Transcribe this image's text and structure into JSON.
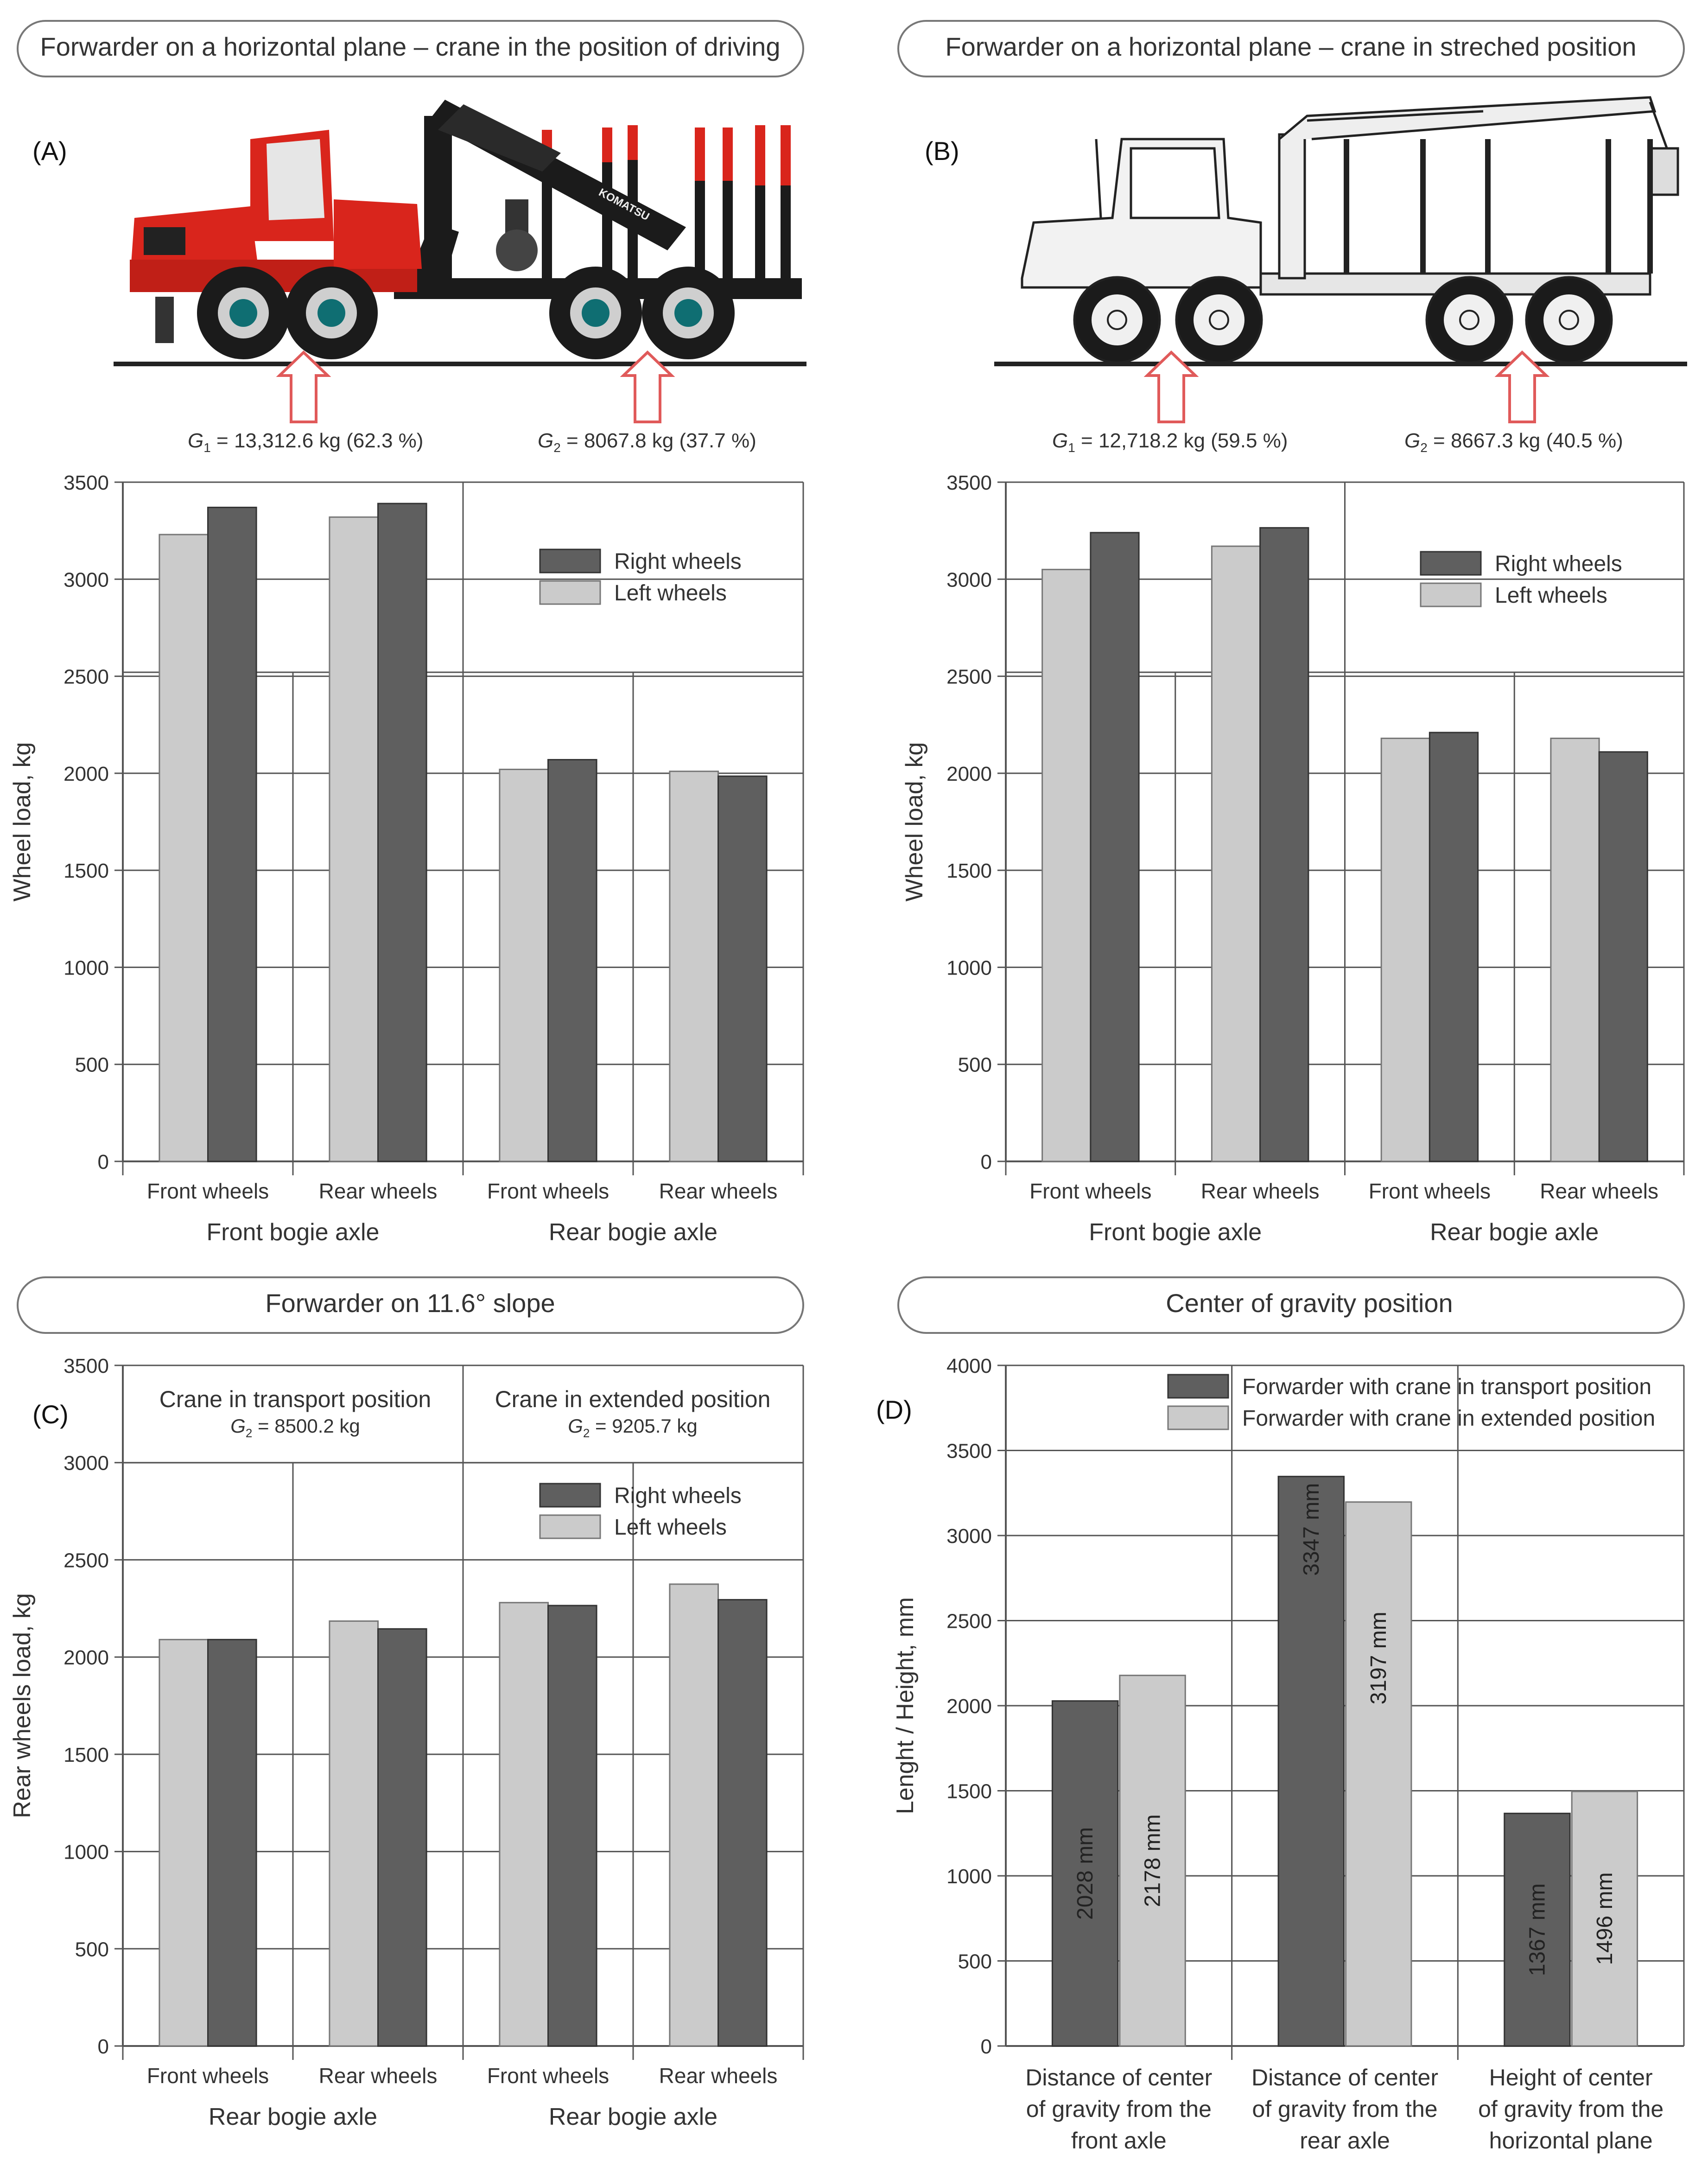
{
  "colors": {
    "right": "#5f5f5f",
    "left": "#cbcbcb",
    "grid": "#555555",
    "text": "#333333",
    "arrow": "#e05a5a",
    "body_red": "#d9251c",
    "body_black": "#1b1b1b",
    "body_grey": "#e8e8e8"
  },
  "panels": {
    "A": {
      "letter": "(A)",
      "header": "Forwarder on a horizontal plane – crane in the position of driving",
      "g1": {
        "sym": "G",
        "sub": "1",
        "text": " = 13,312.6 kg (62.3 %)"
      },
      "g2": {
        "sym": "G",
        "sub": "2",
        "text": " = 8067.8 kg (37.7 %)"
      }
    },
    "B": {
      "letter": "(B)",
      "header": "Forwarder on a horizontal plane – crane in streched position",
      "g1": {
        "sym": "G",
        "sub": "1",
        "text": " = 12,718.2 kg (59.5 %)"
      },
      "g2": {
        "sym": "G",
        "sub": "2",
        "text": " = 8667.3 kg (40.5 %)"
      }
    },
    "C": {
      "letter": "(C)",
      "header": "Forwarder on 11.6° slope",
      "group_titles": [
        {
          "title": "Crane in transport position",
          "sym": "G",
          "sub": "2",
          "text": " = 8500.2 kg"
        },
        {
          "title": "Crane in extended position",
          "sym": "G",
          "sub": "2",
          "text": " = 9205.7 kg"
        }
      ]
    },
    "D": {
      "letter": "(D)",
      "header": "Center of gravity position"
    }
  },
  "chart_data": [
    {
      "id": "A",
      "type": "bar",
      "title": "Forwarder on a horizontal plane – crane in the position of driving",
      "ylabel": "Wheel load, kg",
      "ylim": [
        0,
        3500
      ],
      "yticks": [
        0,
        500,
        1000,
        1500,
        2000,
        2500,
        3000,
        3500
      ],
      "categories": [
        "Front wheels",
        "Rear wheels",
        "Front wheels",
        "Rear wheels"
      ],
      "groups": [
        "Front bogie axle",
        "Rear bogie axle"
      ],
      "legend": [
        "Right wheels",
        "Left wheels"
      ],
      "series": [
        {
          "name": "Left wheels",
          "values": [
            3230,
            3320,
            2020,
            2010
          ]
        },
        {
          "name": "Right wheels",
          "values": [
            3370,
            3390,
            2070,
            1985
          ]
        }
      ]
    },
    {
      "id": "B",
      "type": "bar",
      "title": "Forwarder on a horizontal plane – crane in streched position",
      "ylabel": "Wheel load, kg",
      "ylim": [
        0,
        3500
      ],
      "yticks": [
        0,
        500,
        1000,
        1500,
        2000,
        2500,
        3000,
        3500
      ],
      "categories": [
        "Front wheels",
        "Rear wheels",
        "Front wheels",
        "Rear wheels"
      ],
      "groups": [
        "Front bogie axle",
        "Rear bogie axle"
      ],
      "legend": [
        "Right wheels",
        "Left wheels"
      ],
      "series": [
        {
          "name": "Left wheels",
          "values": [
            3050,
            3170,
            2180,
            2180
          ]
        },
        {
          "name": "Right wheels",
          "values": [
            3240,
            3265,
            2210,
            2110
          ]
        }
      ]
    },
    {
      "id": "C",
      "type": "bar",
      "title": "Forwarder on 11.6° slope",
      "ylabel": "Rear wheels load, kg",
      "ylim": [
        0,
        3500
      ],
      "yticks": [
        0,
        500,
        1000,
        1500,
        2000,
        2500,
        3000,
        3500
      ],
      "categories": [
        "Front wheels",
        "Rear wheels",
        "Front wheels",
        "Rear wheels"
      ],
      "groups": [
        "Rear bogie axle",
        "Rear bogie axle"
      ],
      "legend": [
        "Right wheels",
        "Left wheels"
      ],
      "series": [
        {
          "name": "Left wheels",
          "values": [
            2090,
            2185,
            2280,
            2375
          ]
        },
        {
          "name": "Right wheels",
          "values": [
            2090,
            2145,
            2265,
            2295
          ]
        }
      ]
    },
    {
      "id": "D",
      "type": "bar",
      "title": "Center of gravity position",
      "ylabel": "Lenght / Height, mm",
      "ylim": [
        0,
        4000
      ],
      "yticks": [
        0,
        500,
        1000,
        1500,
        2000,
        2500,
        3000,
        3500,
        4000
      ],
      "categories": [
        [
          "Distance of center",
          "of gravity from the",
          "front axle"
        ],
        [
          "Distance of center",
          "of gravity from the",
          "rear axle"
        ],
        [
          "Height of center",
          "of gravity from the",
          "horizontal plane"
        ]
      ],
      "legend": [
        "Forwarder with crane in transport position",
        "Forwarder with crane in extended position"
      ],
      "series": [
        {
          "name": "Forwarder with crane in transport position",
          "values": [
            2028,
            3347,
            1367
          ],
          "labels": [
            "2028 mm",
            "3347 mm",
            "1367 mm"
          ]
        },
        {
          "name": "Forwarder with crane in extended position",
          "values": [
            2178,
            3197,
            1496
          ],
          "labels": [
            "2178 mm",
            "3197 mm",
            "1496 mm"
          ]
        }
      ]
    }
  ]
}
